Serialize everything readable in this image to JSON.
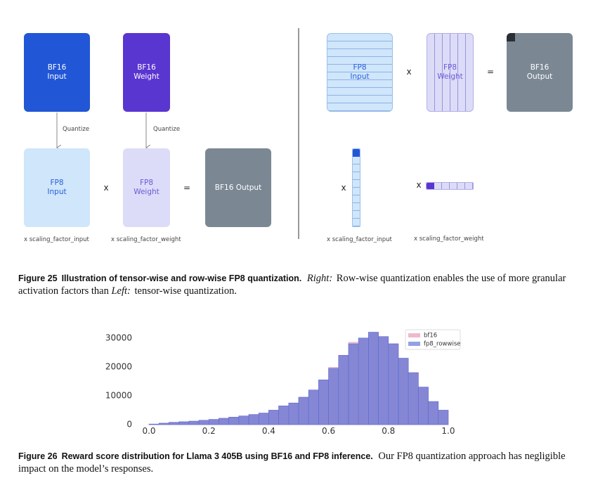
{
  "figure_25": {
    "left": {
      "input": "BF16 Input",
      "weight": "BF16 Weight",
      "quantize_input": "Quantize",
      "quantize_weight": "Quantize",
      "fp8_input": "FP8 Input",
      "times": "x",
      "fp8_weight": "FP8 Weight",
      "equals": "=",
      "output": "BF16 Output",
      "scale_input": "x scaling_factor_input",
      "scale_weight": "x scaling_factor_weight"
    },
    "right": {
      "fp8_input": "FP8 Input",
      "times": "x",
      "fp8_weight": "FP8 Weight",
      "equals": "=",
      "output": "BF16 Output",
      "times_input": "x",
      "times_weight": "x",
      "scale_input": "x scaling_factor_input",
      "scale_weight": "x scaling_factor_weight"
    },
    "caption": {
      "label": "Figure 25",
      "title": "Illustration of tensor-wise and row-wise FP8 quantization.",
      "right_label": "Right:",
      "text_1": "Row-wise quantization enables the use of more granular activation factors than",
      "left_label": "Left:",
      "text_2": "tensor-wise quantization."
    }
  },
  "chart_data": {
    "type": "histogram",
    "bins": [
      0,
      0.0333,
      0.0667,
      0.1,
      0.1333,
      0.1667,
      0.2,
      0.2333,
      0.2667,
      0.3,
      0.3333,
      0.3667,
      0.4,
      0.4333,
      0.4667,
      0.5,
      0.5333,
      0.5667,
      0.6,
      0.6333,
      0.6667,
      0.7,
      0.7333,
      0.7667,
      0.8,
      0.8333,
      0.8667,
      0.9,
      0.9333,
      0.9667,
      1.0
    ],
    "series": [
      {
        "name": "bf16",
        "color": "#e693b0",
        "values": [
          200,
          500,
          800,
          1000,
          1200,
          1500,
          1800,
          2200,
          2600,
          3000,
          3500,
          4000,
          5000,
          6500,
          7500,
          9500,
          12000,
          15500,
          19800,
          24000,
          28500,
          30000,
          32000,
          30500,
          28000,
          23000,
          18000,
          13000,
          8000,
          5000
        ]
      },
      {
        "name": "fp8_rowwise",
        "color": "#5b6fd6",
        "values": [
          200,
          500,
          800,
          1000,
          1200,
          1500,
          1800,
          2200,
          2600,
          3000,
          3500,
          4000,
          5000,
          6500,
          7500,
          9500,
          12000,
          15500,
          19500,
          24000,
          28000,
          30000,
          32000,
          30500,
          28000,
          23000,
          18000,
          13000,
          8000,
          5000
        ]
      }
    ],
    "xlim": [
      -0.04,
      1.04
    ],
    "ylim": [
      -1600,
      33600
    ],
    "xticks": [
      {
        "value": 0,
        "label": "0.0"
      },
      0.2,
      0.4,
      0.6,
      0.8,
      {
        "value": 1,
        "label": "1.0"
      }
    ],
    "yticks": [
      0,
      10000,
      20000,
      30000
    ],
    "legend": "upper right"
  },
  "figure_26": {
    "caption": {
      "label": "Figure 26",
      "title": "Reward score distribution for Llama 3 405B using BF16 and FP8 inference.",
      "text": "Our FP8 quantization approach has negligible impact on the model’s responses."
    }
  }
}
